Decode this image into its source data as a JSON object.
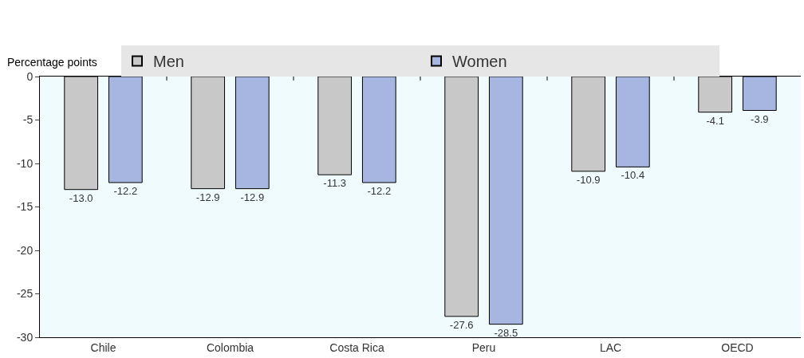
{
  "chart_data": {
    "type": "bar",
    "ylabel": "Percentage points",
    "categories": [
      "Chile",
      "Colombia",
      "Costa Rica",
      "Peru",
      "LAC",
      "OECD"
    ],
    "series": [
      {
        "name": "Men",
        "color": "#c8c8c8",
        "values": [
          -13.0,
          -12.9,
          -11.3,
          -27.6,
          -10.9,
          -4.1
        ]
      },
      {
        "name": "Women",
        "color": "#a6b6e0",
        "values": [
          -12.2,
          -12.9,
          -12.2,
          -28.5,
          -10.4,
          -3.9
        ]
      }
    ],
    "value_labels": [
      [
        "-13.0",
        "-12.9",
        "-11.3",
        "-27.6",
        "-10.9",
        "-4.1"
      ],
      [
        "-12.2",
        "-12.9",
        "-12.2",
        "-28.5",
        "-10.4",
        "-3.9"
      ]
    ],
    "ylim": [
      -30,
      0
    ],
    "yticks": [
      -30,
      -25,
      -20,
      -15,
      -10,
      -5,
      0
    ],
    "grid": false,
    "legend": "top"
  }
}
